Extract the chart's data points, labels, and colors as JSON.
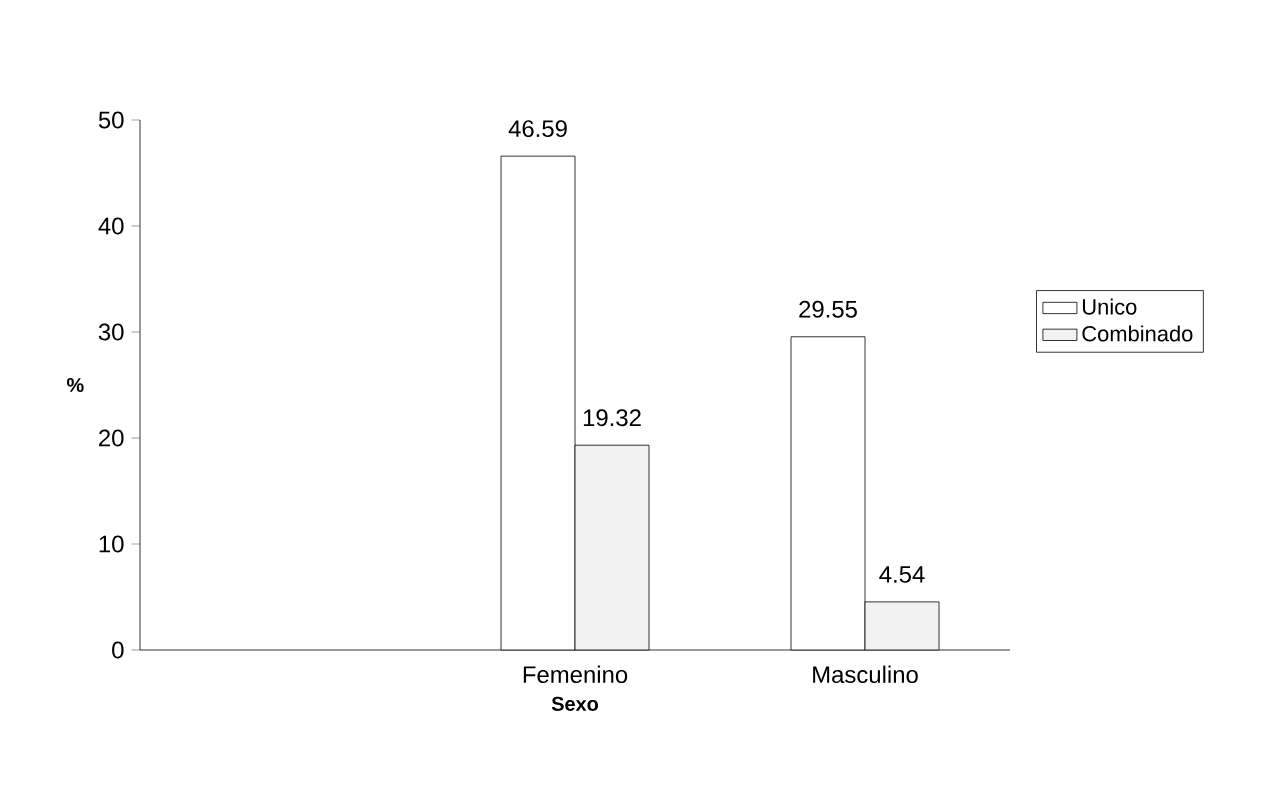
{
  "chart_data": {
    "type": "bar",
    "categories": [
      null,
      "Femenino",
      "Masculino"
    ],
    "series": [
      {
        "name": "Unico",
        "color": "#ffffff",
        "values": [
          null,
          46.59,
          29.55
        ]
      },
      {
        "name": "Combinado",
        "color": "#f2f2f2",
        "values": [
          null,
          19.32,
          4.54
        ]
      }
    ],
    "ylabel": "%",
    "xlabel": "Sexo",
    "ylim": [
      0,
      50
    ],
    "yticks": [
      0,
      10,
      20,
      30,
      40,
      50
    ],
    "data_labels": true,
    "legend": "right"
  }
}
